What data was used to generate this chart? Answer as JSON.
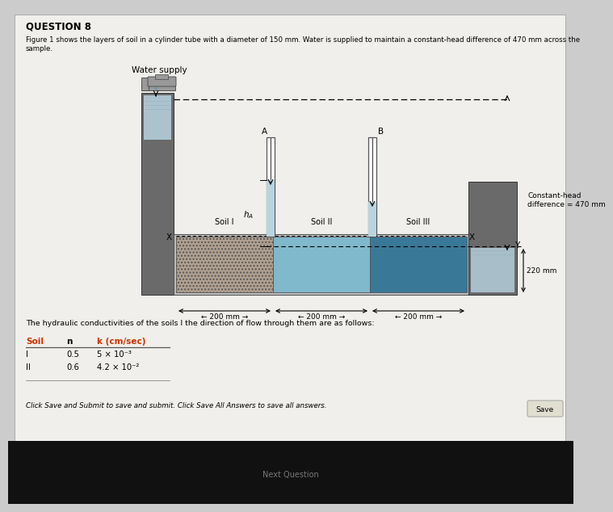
{
  "title": "QUESTION 8",
  "caption_line1": "Figure 1 shows the layers of soil in a cylinder tube with a diameter of 150 mm. Water is supplied to maintain a constant-head difference of 470 mm across the",
  "caption_line2": "sample.",
  "water_supply_label": "Water supply",
  "constant_head_label": "Constant-head\ndifference = 470 mm",
  "label_220mm": "220 mm",
  "soil_labels": [
    "Soil I",
    "Soil II",
    "Soil III"
  ],
  "dim_label": "200 mm",
  "pt_A": "A",
  "pt_B": "B",
  "pt_hA": "h",
  "pt_Y": "Y",
  "pt_X": "X",
  "hydraulic_text": "The hydraulic conductivities of the soils l the direction of flow through them are as follows:",
  "th_soil": "Soil",
  "th_n": "n",
  "th_k": "k (cm/sec)",
  "row1": [
    "I",
    "0.5",
    "5 × 10⁻³"
  ],
  "row2": [
    "II",
    "0.6",
    "4.2 × 10⁻²"
  ],
  "footer": "Click Save and Submit to save and submit. Click Save All Answers to save all answers.",
  "save_btn": "Save",
  "next_q": "Next Question",
  "bg_outer": "#cccccc",
  "bg_page": "#f0efeb",
  "col_dark_gray": "#6a6a6a",
  "col_mid_gray": "#9a9a9a",
  "col_light_gray": "#c0c0c0",
  "col_soil1": "#b0a090",
  "col_soil2": "#80b8cc",
  "col_soil3": "#3a7898",
  "col_water": "#b8d4e0",
  "col_tank_bg": "#888888",
  "col_pipe": "#999999",
  "col_bottom_bar": "#111111",
  "col_chegg_text": "#555544"
}
